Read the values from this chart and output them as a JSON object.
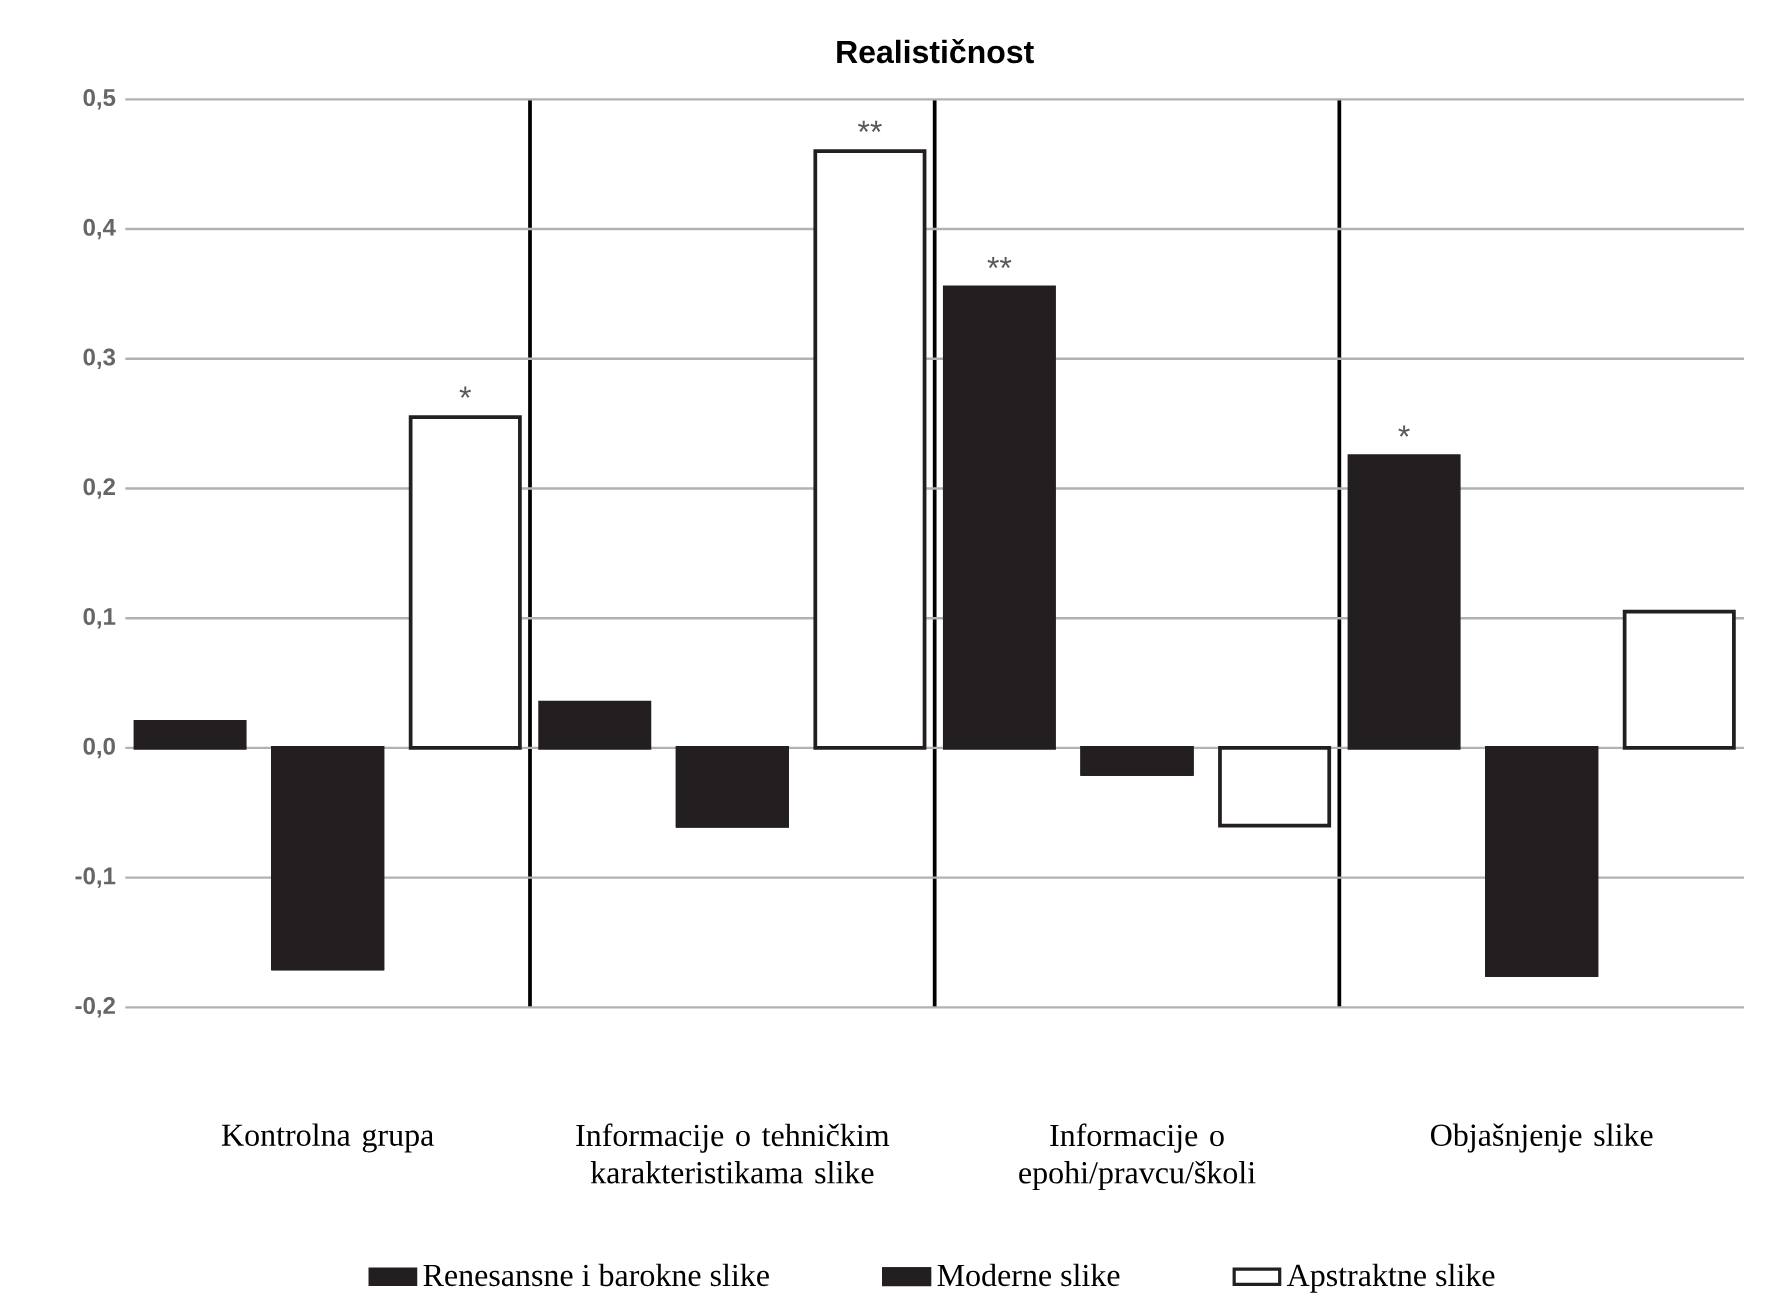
{
  "chart_data": {
    "type": "bar",
    "title": "Realističnost",
    "categories": [
      "Kontrolna grupa",
      "Informacije o tehničkim karakteristikama slike",
      "Informacije o epohi/pravcu/školi",
      "Objašnjenje slike"
    ],
    "series": [
      {
        "name": "Renesansne i barokne slike",
        "color": "#231f20",
        "values": [
          0.02,
          0.035,
          0.355,
          0.225
        ],
        "value_labels": [
          null,
          null,
          "**",
          "*"
        ]
      },
      {
        "name": "Moderne slike",
        "color": "#231f20",
        "values": [
          -0.17,
          -0.06,
          -0.02,
          -0.175
        ]
      },
      {
        "name": "Apstraktne slike",
        "color": "#ffffff",
        "values": [
          0.255,
          0.46,
          -0.06,
          0.105
        ],
        "value_labels": [
          "*",
          "**",
          null,
          null
        ]
      }
    ],
    "ylim": [
      -0.2,
      0.5
    ],
    "yticks": [
      {
        "value": -0.2,
        "label": "-0,2"
      },
      {
        "value": -0.1,
        "label": "-0,1"
      },
      {
        "value": 0,
        "label": "0,0"
      },
      {
        "value": 0.1,
        "label": "0,1"
      },
      {
        "value": 0.2,
        "label": "0,2"
      },
      {
        "value": 0.3,
        "label": "0,3"
      },
      {
        "value": 0.4,
        "label": "0,4"
      },
      {
        "value": 0.5,
        "label": "0,5"
      }
    ],
    "grid": "y",
    "legend": "bottom"
  }
}
